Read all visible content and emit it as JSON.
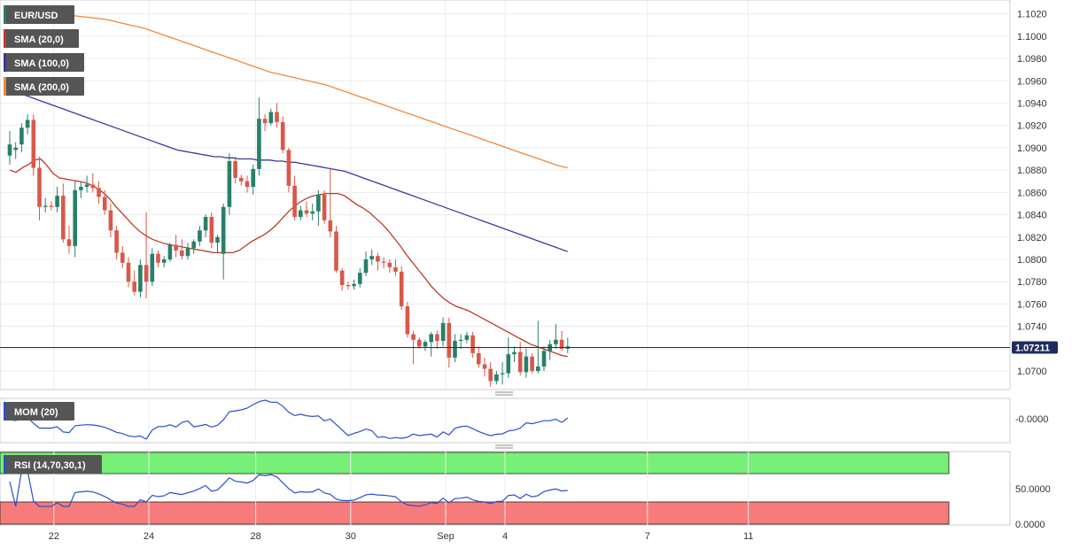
{
  "colors": {
    "bull": "#26806a",
    "bear": "#d9584a",
    "sma20": "#c0392b",
    "sma100": "#3a3a9e",
    "sma200": "#f0883a",
    "mom": "#2b4fcc",
    "rsi": "#2b4fcc",
    "rsi_over": "#77f077",
    "rsi_under": "#f77b7b",
    "price_line": "#1f2d5c",
    "grid": "#e9ecef"
  },
  "legend": {
    "symbol": "EUR/USD",
    "sma20": "SMA (20,0)",
    "sma100": "SMA (100,0)",
    "sma200": "SMA (200,0)",
    "mom": "MOM (20)",
    "rsi": "RSI (14,70,30,1)"
  },
  "last_price": "1.07211",
  "mom_tick": "-0.0000",
  "rsi_ticks": [
    "50.0000",
    "0.0000"
  ],
  "chart_data": {
    "type": "candlestick",
    "timeframe": "4h",
    "y_ticks": [
      "1.1020",
      "1.1000",
      "1.0980",
      "1.0960",
      "1.0940",
      "1.0920",
      "1.0900",
      "1.0880",
      "1.0860",
      "1.0840",
      "1.0820",
      "1.0800",
      "1.0780",
      "1.0760",
      "1.0740",
      "1.0720",
      "1.0700"
    ],
    "ylim": [
      1.0685,
      1.103
    ],
    "x_labels": [
      {
        "bar": 4,
        "text": "22"
      },
      {
        "bar": 20,
        "text": "24"
      },
      {
        "bar": 38,
        "text": "28"
      },
      {
        "bar": 54,
        "text": "30"
      },
      {
        "bar": 70,
        "text": "Sep"
      },
      {
        "bar": 80,
        "text": "4"
      },
      {
        "bar": 104,
        "text": "7"
      },
      {
        "bar": 121,
        "text": "11"
      }
    ],
    "candles": [
      [
        1.0893,
        1.0915,
        1.0885,
        1.0903
      ],
      [
        1.0898,
        1.0905,
        1.089,
        1.09
      ],
      [
        1.0903,
        1.0922,
        1.0896,
        1.0918
      ],
      [
        1.0918,
        1.093,
        1.0912,
        1.0925
      ],
      [
        1.0925,
        1.093,
        1.0875,
        1.0882
      ],
      [
        1.0882,
        1.0892,
        1.0835,
        1.0847
      ],
      [
        1.0847,
        1.0855,
        1.0842,
        1.0848
      ],
      [
        1.0848,
        1.0852,
        1.0844,
        1.0847
      ],
      [
        1.0847,
        1.0865,
        1.0842,
        1.0857
      ],
      [
        1.0857,
        1.0868,
        1.0815,
        1.0818
      ],
      [
        1.0818,
        1.083,
        1.0805,
        1.0812
      ],
      [
        1.0812,
        1.087,
        1.0802,
        1.0862
      ],
      [
        1.0862,
        1.087,
        1.0855,
        1.0865
      ],
      [
        1.0865,
        1.0875,
        1.086,
        1.0867
      ],
      [
        1.0867,
        1.0877,
        1.086,
        1.0864
      ],
      [
        1.0864,
        1.087,
        1.085,
        1.0856
      ],
      [
        1.0856,
        1.0862,
        1.084,
        1.0844
      ],
      [
        1.0844,
        1.085,
        1.082,
        1.0826
      ],
      [
        1.0826,
        1.083,
        1.08,
        1.0806
      ],
      [
        1.0806,
        1.0812,
        1.0792,
        1.0797
      ],
      [
        1.0797,
        1.0802,
        1.0775,
        1.078
      ],
      [
        1.078,
        1.079,
        1.0768,
        1.0771
      ],
      [
        1.0771,
        1.08,
        1.0766,
        1.0795
      ],
      [
        1.0795,
        1.0842,
        1.0765,
        1.078
      ],
      [
        1.078,
        1.081,
        1.0776,
        1.0805
      ],
      [
        1.0805,
        1.0808,
        1.0793,
        1.0797
      ],
      [
        1.0797,
        1.0803,
        1.0793,
        1.08
      ],
      [
        1.08,
        1.0815,
        1.0798,
        1.0813
      ],
      [
        1.0813,
        1.0822,
        1.0802,
        1.0808
      ],
      [
        1.0808,
        1.0818,
        1.08,
        1.0803
      ],
      [
        1.0803,
        1.0815,
        1.08,
        1.081
      ],
      [
        1.081,
        1.0818,
        1.0805,
        1.0816
      ],
      [
        1.0816,
        1.083,
        1.0812,
        1.0826
      ],
      [
        1.0826,
        1.084,
        1.082,
        1.0838
      ],
      [
        1.0838,
        1.0842,
        1.081,
        1.0815
      ],
      [
        1.0815,
        1.0822,
        1.0806,
        1.082
      ],
      [
        1.0805,
        1.085,
        1.0782,
        1.0847
      ],
      [
        1.0847,
        1.0895,
        1.084,
        1.0888
      ],
      [
        1.0888,
        1.0892,
        1.0868,
        1.0873
      ],
      [
        1.0873,
        1.0876,
        1.0866,
        1.087
      ],
      [
        1.087,
        1.0875,
        1.086,
        1.0865
      ],
      [
        1.0865,
        1.0885,
        1.0858,
        1.0881
      ],
      [
        1.0881,
        1.0945,
        1.0875,
        1.0926
      ],
      [
        1.0926,
        1.093,
        1.0915,
        1.0922
      ],
      [
        1.0922,
        1.0935,
        1.092,
        1.0932
      ],
      [
        1.0932,
        1.094,
        1.0918,
        1.0923
      ],
      [
        1.0923,
        1.0928,
        1.0895,
        1.0898
      ],
      [
        1.0898,
        1.09,
        1.086,
        1.0866
      ],
      [
        1.0866,
        1.0875,
        1.0835,
        1.0838
      ],
      [
        1.0838,
        1.0848,
        1.0835,
        1.0844
      ],
      [
        1.0844,
        1.0852,
        1.0838,
        1.0841
      ],
      [
        1.0841,
        1.085,
        1.0835,
        1.0843
      ],
      [
        1.0843,
        1.0862,
        1.083,
        1.0858
      ],
      [
        1.0858,
        1.0862,
        1.0832,
        1.0835
      ],
      [
        1.0835,
        1.0882,
        1.082,
        1.0825
      ],
      [
        1.0825,
        1.083,
        1.0788,
        1.079
      ],
      [
        1.079,
        1.0792,
        1.0772,
        1.0777
      ],
      [
        1.0777,
        1.078,
        1.0773,
        1.0776
      ],
      [
        1.0776,
        1.0782,
        1.0773,
        1.0778
      ],
      [
        1.0778,
        1.0792,
        1.0775,
        1.0788
      ],
      [
        1.0788,
        1.0807,
        1.0785,
        1.08
      ],
      [
        1.08,
        1.0809,
        1.0795,
        1.0803
      ],
      [
        1.0803,
        1.0806,
        1.079,
        1.0798
      ],
      [
        1.0798,
        1.0802,
        1.0792,
        1.0797
      ],
      [
        1.0797,
        1.08,
        1.0788,
        1.0793
      ],
      [
        1.0793,
        1.08,
        1.0785,
        1.0789
      ],
      [
        1.0789,
        1.0794,
        1.0755,
        1.0758
      ],
      [
        1.0758,
        1.0762,
        1.073,
        1.0733
      ],
      [
        1.0733,
        1.0736,
        1.0706,
        1.0728
      ],
      [
        1.0728,
        1.073,
        1.072,
        1.0722
      ],
      [
        1.0722,
        1.0728,
        1.0718,
        1.0726
      ],
      [
        1.0726,
        1.0735,
        1.0713,
        1.0733
      ],
      [
        1.0733,
        1.0736,
        1.072,
        1.0727
      ],
      [
        1.0727,
        1.0748,
        1.0722,
        1.0743
      ],
      [
        1.0743,
        1.0748,
        1.0703,
        1.0712
      ],
      [
        1.0712,
        1.0733,
        1.0708,
        1.0727
      ],
      [
        1.0727,
        1.0733,
        1.072,
        1.0728
      ],
      [
        1.0728,
        1.0735,
        1.0725,
        1.0732
      ],
      [
        1.0732,
        1.0735,
        1.0712,
        1.0716
      ],
      [
        1.0716,
        1.0722,
        1.0703,
        1.0706
      ],
      [
        1.0706,
        1.0712,
        1.0695,
        1.0702
      ],
      [
        1.0702,
        1.0708,
        1.0686,
        1.0691
      ],
      [
        1.0691,
        1.07,
        1.0688,
        1.0697
      ],
      [
        1.0697,
        1.0708,
        1.0688,
        1.0698
      ],
      [
        1.0698,
        1.073,
        1.0694,
        1.0715
      ],
      [
        1.0715,
        1.0722,
        1.0708,
        1.0717
      ],
      [
        1.0717,
        1.0726,
        1.0696,
        1.0699
      ],
      [
        1.0699,
        1.072,
        1.0694,
        1.0713
      ],
      [
        1.0713,
        1.0716,
        1.0698,
        1.07
      ],
      [
        1.07,
        1.0745,
        1.0698,
        1.0704
      ],
      [
        1.0704,
        1.0722,
        1.07,
        1.0718
      ],
      [
        1.0718,
        1.0728,
        1.071,
        1.0724
      ],
      [
        1.0724,
        1.0742,
        1.072,
        1.0728
      ],
      [
        1.0728,
        1.0736,
        1.0718,
        1.072
      ],
      [
        1.072,
        1.073,
        1.0716,
        1.0722
      ]
    ],
    "sma20": [
      1.088,
      1.0878,
      1.0882,
      1.0885,
      1.0889,
      1.089,
      1.0884,
      1.0877,
      1.0873,
      1.0872,
      1.0871,
      1.087,
      1.0869,
      1.0867,
      1.0864,
      1.086,
      1.0855,
      1.0848,
      1.0842,
      1.0836,
      1.083,
      1.0825,
      1.0821,
      1.0818,
      1.0816,
      1.0814,
      1.0813,
      1.0812,
      1.0811,
      1.081,
      1.0809,
      1.0808,
      1.0807,
      1.0806,
      1.0806,
      1.0806,
      1.0806,
      1.0808,
      1.0812,
      1.0816,
      1.0819,
      1.0822,
      1.0826,
      1.0831,
      1.0837,
      1.0843,
      1.0848,
      1.0852,
      1.0855,
      1.0857,
      1.0858,
      1.0859,
      1.0859,
      1.0859,
      1.0857,
      1.0853,
      1.0849,
      1.0846,
      1.0842,
      1.0837,
      1.0832,
      1.0826,
      1.0819,
      1.0812,
      1.0804,
      1.0797,
      1.079,
      1.0783,
      1.0776,
      1.077,
      1.0765,
      1.0761,
      1.0758,
      1.0756,
      1.0754,
      1.0751,
      1.0748,
      1.0745,
      1.0742,
      1.0739,
      1.0736,
      1.0733,
      1.073,
      1.0727,
      1.0724,
      1.0722,
      1.072,
      1.0718,
      1.0716,
      1.0714,
      1.0713
    ],
    "sma100": [
      1.0952,
      1.095,
      1.0948,
      1.0946,
      1.0944,
      1.0942,
      1.094,
      1.0938,
      1.0936,
      1.0934,
      1.0932,
      1.093,
      1.0928,
      1.0926,
      1.0924,
      1.0922,
      1.092,
      1.0918,
      1.0916,
      1.0914,
      1.0912,
      1.091,
      1.0908,
      1.0906,
      1.0904,
      1.0902,
      1.09,
      1.0898,
      1.0897,
      1.0896,
      1.0895,
      1.0894,
      1.0893,
      1.0892,
      1.0892,
      1.0891,
      1.0891,
      1.089,
      1.089,
      1.089,
      1.0889,
      1.0889,
      1.0889,
      1.0888,
      1.0888,
      1.0887,
      1.0887,
      1.0886,
      1.0885,
      1.0884,
      1.0883,
      1.0882,
      1.0881,
      1.088,
      1.0879,
      1.0877,
      1.0875,
      1.0873,
      1.0871,
      1.0869,
      1.0867,
      1.0865,
      1.0863,
      1.0861,
      1.0859,
      1.0857,
      1.0855,
      1.0853,
      1.0851,
      1.0849,
      1.0847,
      1.0845,
      1.0843,
      1.0841,
      1.0839,
      1.0837,
      1.0835,
      1.0833,
      1.0831,
      1.0829,
      1.0827,
      1.0825,
      1.0823,
      1.0821,
      1.0819,
      1.0817,
      1.0815,
      1.0813,
      1.0811,
      1.0809,
      1.0807
    ],
    "sma200": [
      1.1025,
      1.1024,
      1.1023,
      1.1022,
      1.1021,
      1.102,
      1.1019,
      1.1018,
      1.1017,
      1.1016,
      1.1015,
      1.1013,
      1.1011,
      1.1009,
      1.1007,
      1.1004,
      1.1001,
      1.0998,
      1.0995,
      1.0992,
      1.0989,
      1.0986,
      1.0983,
      1.098,
      1.0977,
      1.0974,
      1.0971,
      1.0968,
      1.0966,
      1.0964,
      1.0962,
      1.096,
      1.0958,
      1.0956,
      1.0953,
      1.095,
      1.0947,
      1.0944,
      1.0941,
      1.0938,
      1.0935,
      1.0932,
      1.0929,
      1.0926,
      1.0923,
      1.092,
      1.0917,
      1.0914,
      1.0911,
      1.0908,
      1.0905,
      1.0902,
      1.0899,
      1.0896,
      1.0893,
      1.089,
      1.0887,
      1.0884,
      1.0882
    ]
  }
}
